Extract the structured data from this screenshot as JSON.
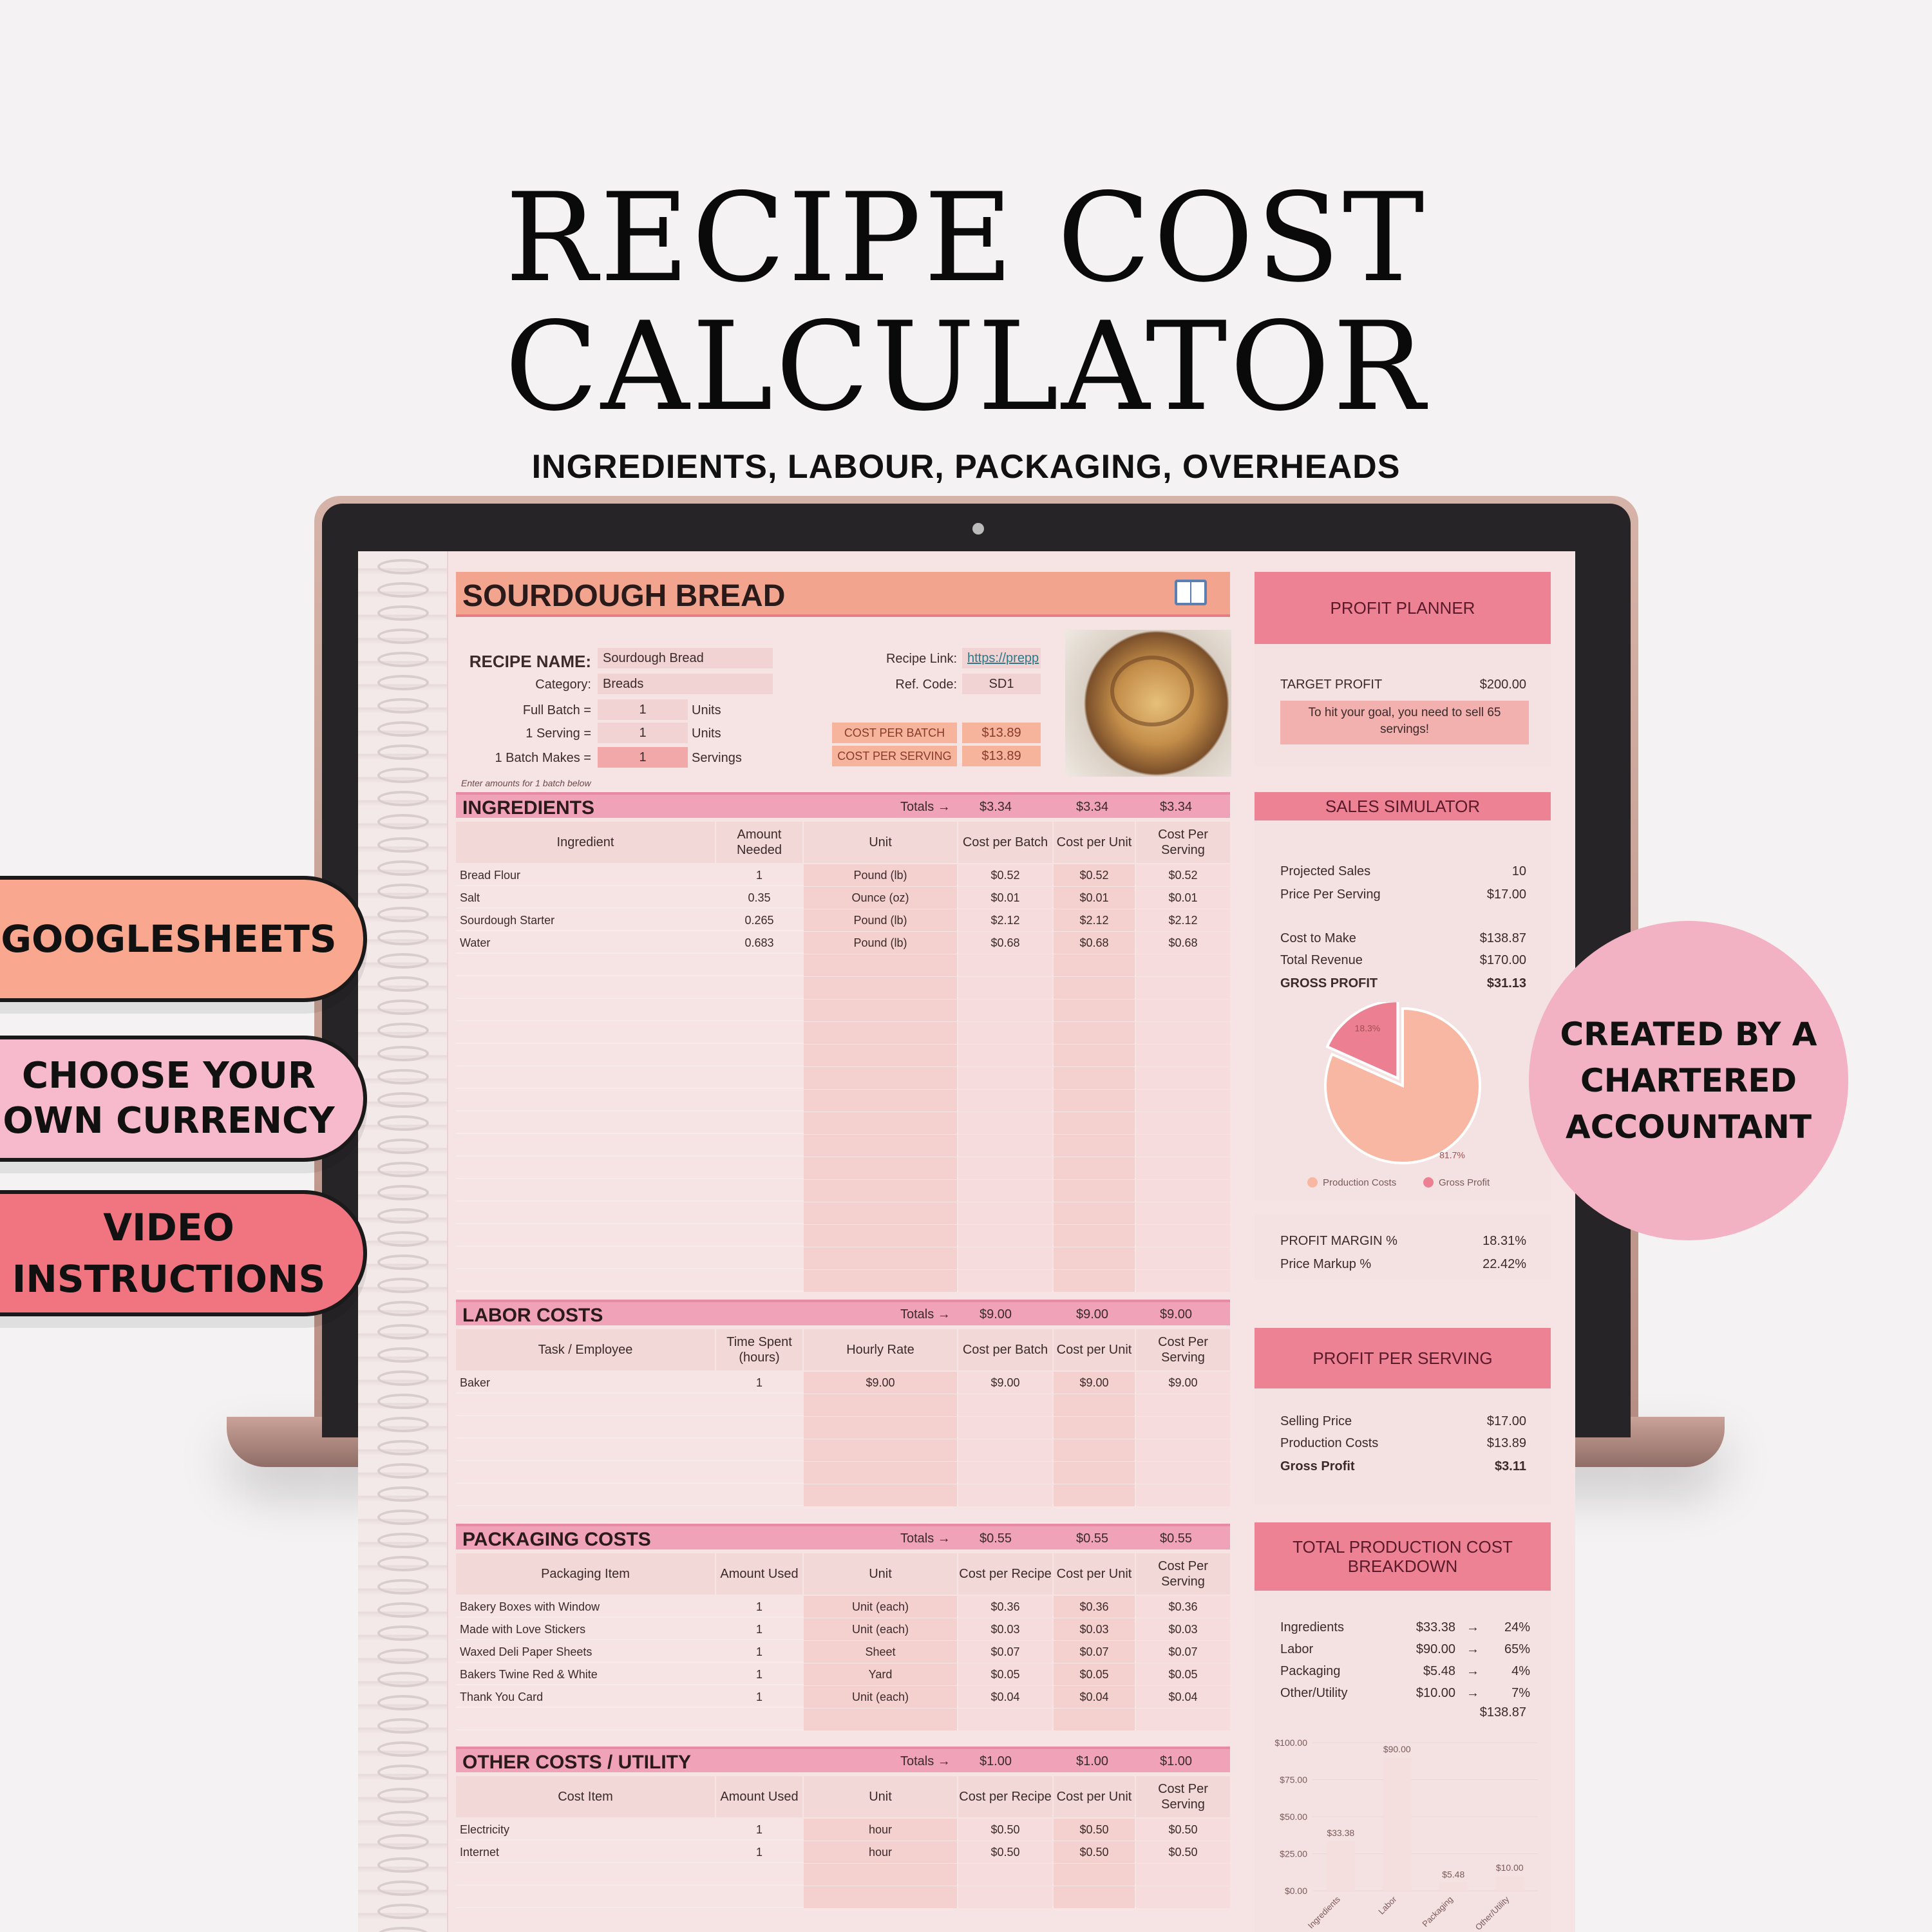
{
  "headline": {
    "line1": "RECIPE COST",
    "line2": "CALCULATOR",
    "subtitle": "INGREDIENTS, LABOUR, PACKAGING, OVERHEADS"
  },
  "features": [
    {
      "label": "GOOGLESHEETS"
    },
    {
      "label": "CHOOSE YOUR OWN CURRENCY"
    },
    {
      "label": "VIDEO INSTRUCTIONS"
    }
  ],
  "badge": {
    "label": "CREATED BY A CHARTERED ACCOUNTANT"
  },
  "sheet": {
    "title": "SOURDOUGH BREAD",
    "recipe": {
      "name_label": "RECIPE NAME:",
      "name": "Sourdough Bread",
      "category_label": "Category:",
      "category": "Breads",
      "full_batch_label": "Full Batch =",
      "full_batch": "1",
      "full_batch_unit": "Units",
      "serving_label": "1 Serving =",
      "serving": "1",
      "serving_unit": "Units",
      "batch_makes_label": "1 Batch Makes =",
      "batch_makes": "1",
      "batch_makes_unit": "Servings",
      "link_label": "Recipe Link:",
      "link": "https://prepp",
      "ref_label": "Ref. Code:",
      "ref": "SD1",
      "cost_batch_label": "COST PER BATCH",
      "cost_batch": "$13.89",
      "cost_serving_label": "COST PER SERVING",
      "cost_serving": "$13.89",
      "note": "Enter amounts for 1 batch below"
    },
    "ingredients": {
      "title": "INGREDIENTS",
      "totals_label": "Totals →",
      "totals": [
        "$3.34",
        "$3.34",
        "$3.34"
      ],
      "headers": [
        "Ingredient",
        "Amount Needed",
        "Unit",
        "Cost per Batch",
        "Cost per Unit",
        "Cost Per Serving"
      ],
      "rows": [
        [
          "Bread Flour",
          "1",
          "Pound (lb)",
          "$0.52",
          "$0.52",
          "$0.52"
        ],
        [
          "Salt",
          "0.35",
          "Ounce (oz)",
          "$0.01",
          "$0.01",
          "$0.01"
        ],
        [
          "Sourdough Starter",
          "0.265",
          "Pound (lb)",
          "$2.12",
          "$2.12",
          "$2.12"
        ],
        [
          "Water",
          "0.683",
          "Pound (lb)",
          "$0.68",
          "$0.68",
          "$0.68"
        ]
      ]
    },
    "labor": {
      "title": "LABOR COSTS",
      "totals_label": "Totals →",
      "totals": [
        "$9.00",
        "$9.00",
        "$9.00"
      ],
      "headers": [
        "Task / Employee",
        "Time Spent (hours)",
        "Hourly Rate",
        "Cost per Batch",
        "Cost per Unit",
        "Cost Per Serving"
      ],
      "rows": [
        [
          "Baker",
          "1",
          "$9.00",
          "$9.00",
          "$9.00",
          "$9.00"
        ]
      ]
    },
    "packaging": {
      "title": "PACKAGING COSTS",
      "totals_label": "Totals →",
      "totals": [
        "$0.55",
        "$0.55",
        "$0.55"
      ],
      "headers": [
        "Packaging Item",
        "Amount Used",
        "Unit",
        "Cost per Recipe",
        "Cost per Unit",
        "Cost Per Serving"
      ],
      "rows": [
        [
          "Bakery Boxes with Window",
          "1",
          "Unit (each)",
          "$0.36",
          "$0.36",
          "$0.36"
        ],
        [
          "Made with Love Stickers",
          "1",
          "Unit (each)",
          "$0.03",
          "$0.03",
          "$0.03"
        ],
        [
          "Waxed Deli Paper Sheets",
          "1",
          "Sheet",
          "$0.07",
          "$0.07",
          "$0.07"
        ],
        [
          "Bakers Twine Red & White",
          "1",
          "Yard",
          "$0.05",
          "$0.05",
          "$0.05"
        ],
        [
          "Thank You Card",
          "1",
          "Unit (each)",
          "$0.04",
          "$0.04",
          "$0.04"
        ]
      ]
    },
    "other": {
      "title": "OTHER COSTS / UTILITY",
      "totals_label": "Totals →",
      "totals": [
        "$1.00",
        "$1.00",
        "$1.00"
      ],
      "headers": [
        "Cost Item",
        "Amount Used",
        "Unit",
        "Cost per Recipe",
        "Cost per Unit",
        "Cost Per Serving"
      ],
      "rows": [
        [
          "Electricity",
          "1",
          "hour",
          "$0.50",
          "$0.50",
          "$0.50"
        ],
        [
          "Internet",
          "1",
          "hour",
          "$0.50",
          "$0.50",
          "$0.50"
        ]
      ]
    },
    "profit_planner": {
      "title": "PROFIT PLANNER",
      "target_label": "TARGET PROFIT",
      "target": "$200.00",
      "message": "To hit your goal, you need to sell 65 servings!"
    },
    "sales_simulator": {
      "title": "SALES SIMULATOR",
      "projected_label": "Projected Sales",
      "projected": "10",
      "price_label": "Price Per Serving",
      "price": "$17.00",
      "cost_label": "Cost to Make",
      "cost": "$138.87",
      "revenue_label": "Total Revenue",
      "revenue": "$170.00",
      "gross_label": "GROSS PROFIT",
      "gross": "$31.13",
      "margin_label": "PROFIT MARGIN %",
      "margin": "18.31%",
      "markup_label": "Price Markup %",
      "markup": "22.42%"
    },
    "profit_per_serving": {
      "title": "PROFIT PER SERVING",
      "selling_label": "Selling Price",
      "selling": "$17.00",
      "production_label": "Production Costs",
      "production": "$13.89",
      "gross_label": "Gross Profit",
      "gross": "$3.11"
    },
    "breakdown": {
      "title": "TOTAL PRODUCTION COST BREAKDOWN",
      "arrow": "→",
      "rows": [
        [
          "Ingredients",
          "$33.38",
          "24%"
        ],
        [
          "Labor",
          "$90.00",
          "65%"
        ],
        [
          "Packaging",
          "$5.48",
          "4%"
        ],
        [
          "Other/Utility",
          "$10.00",
          "7%"
        ]
      ],
      "total": "$138.87"
    }
  },
  "chart_data": [
    {
      "type": "pie",
      "categories": [
        "Production Costs",
        "Gross Profit"
      ],
      "values": [
        81.7,
        18.3
      ],
      "labels": [
        "81.7%",
        "18.3%"
      ],
      "colors": [
        "#f8b7a2",
        "#ec7f92"
      ],
      "legend": "bottom"
    },
    {
      "type": "bar",
      "categories": [
        "Ingredients",
        "Labor",
        "Packaging",
        "Other/Utility"
      ],
      "values": [
        33.38,
        90.0,
        5.48,
        10.0
      ],
      "data_labels": [
        "$33.38",
        "$90.00",
        "$5.48",
        "$10.00"
      ],
      "ylim": [
        0,
        100
      ],
      "yticks": [
        "$0.00",
        "$25.00",
        "$50.00",
        "$75.00",
        "$100.00"
      ],
      "color": "#f4dede"
    }
  ]
}
